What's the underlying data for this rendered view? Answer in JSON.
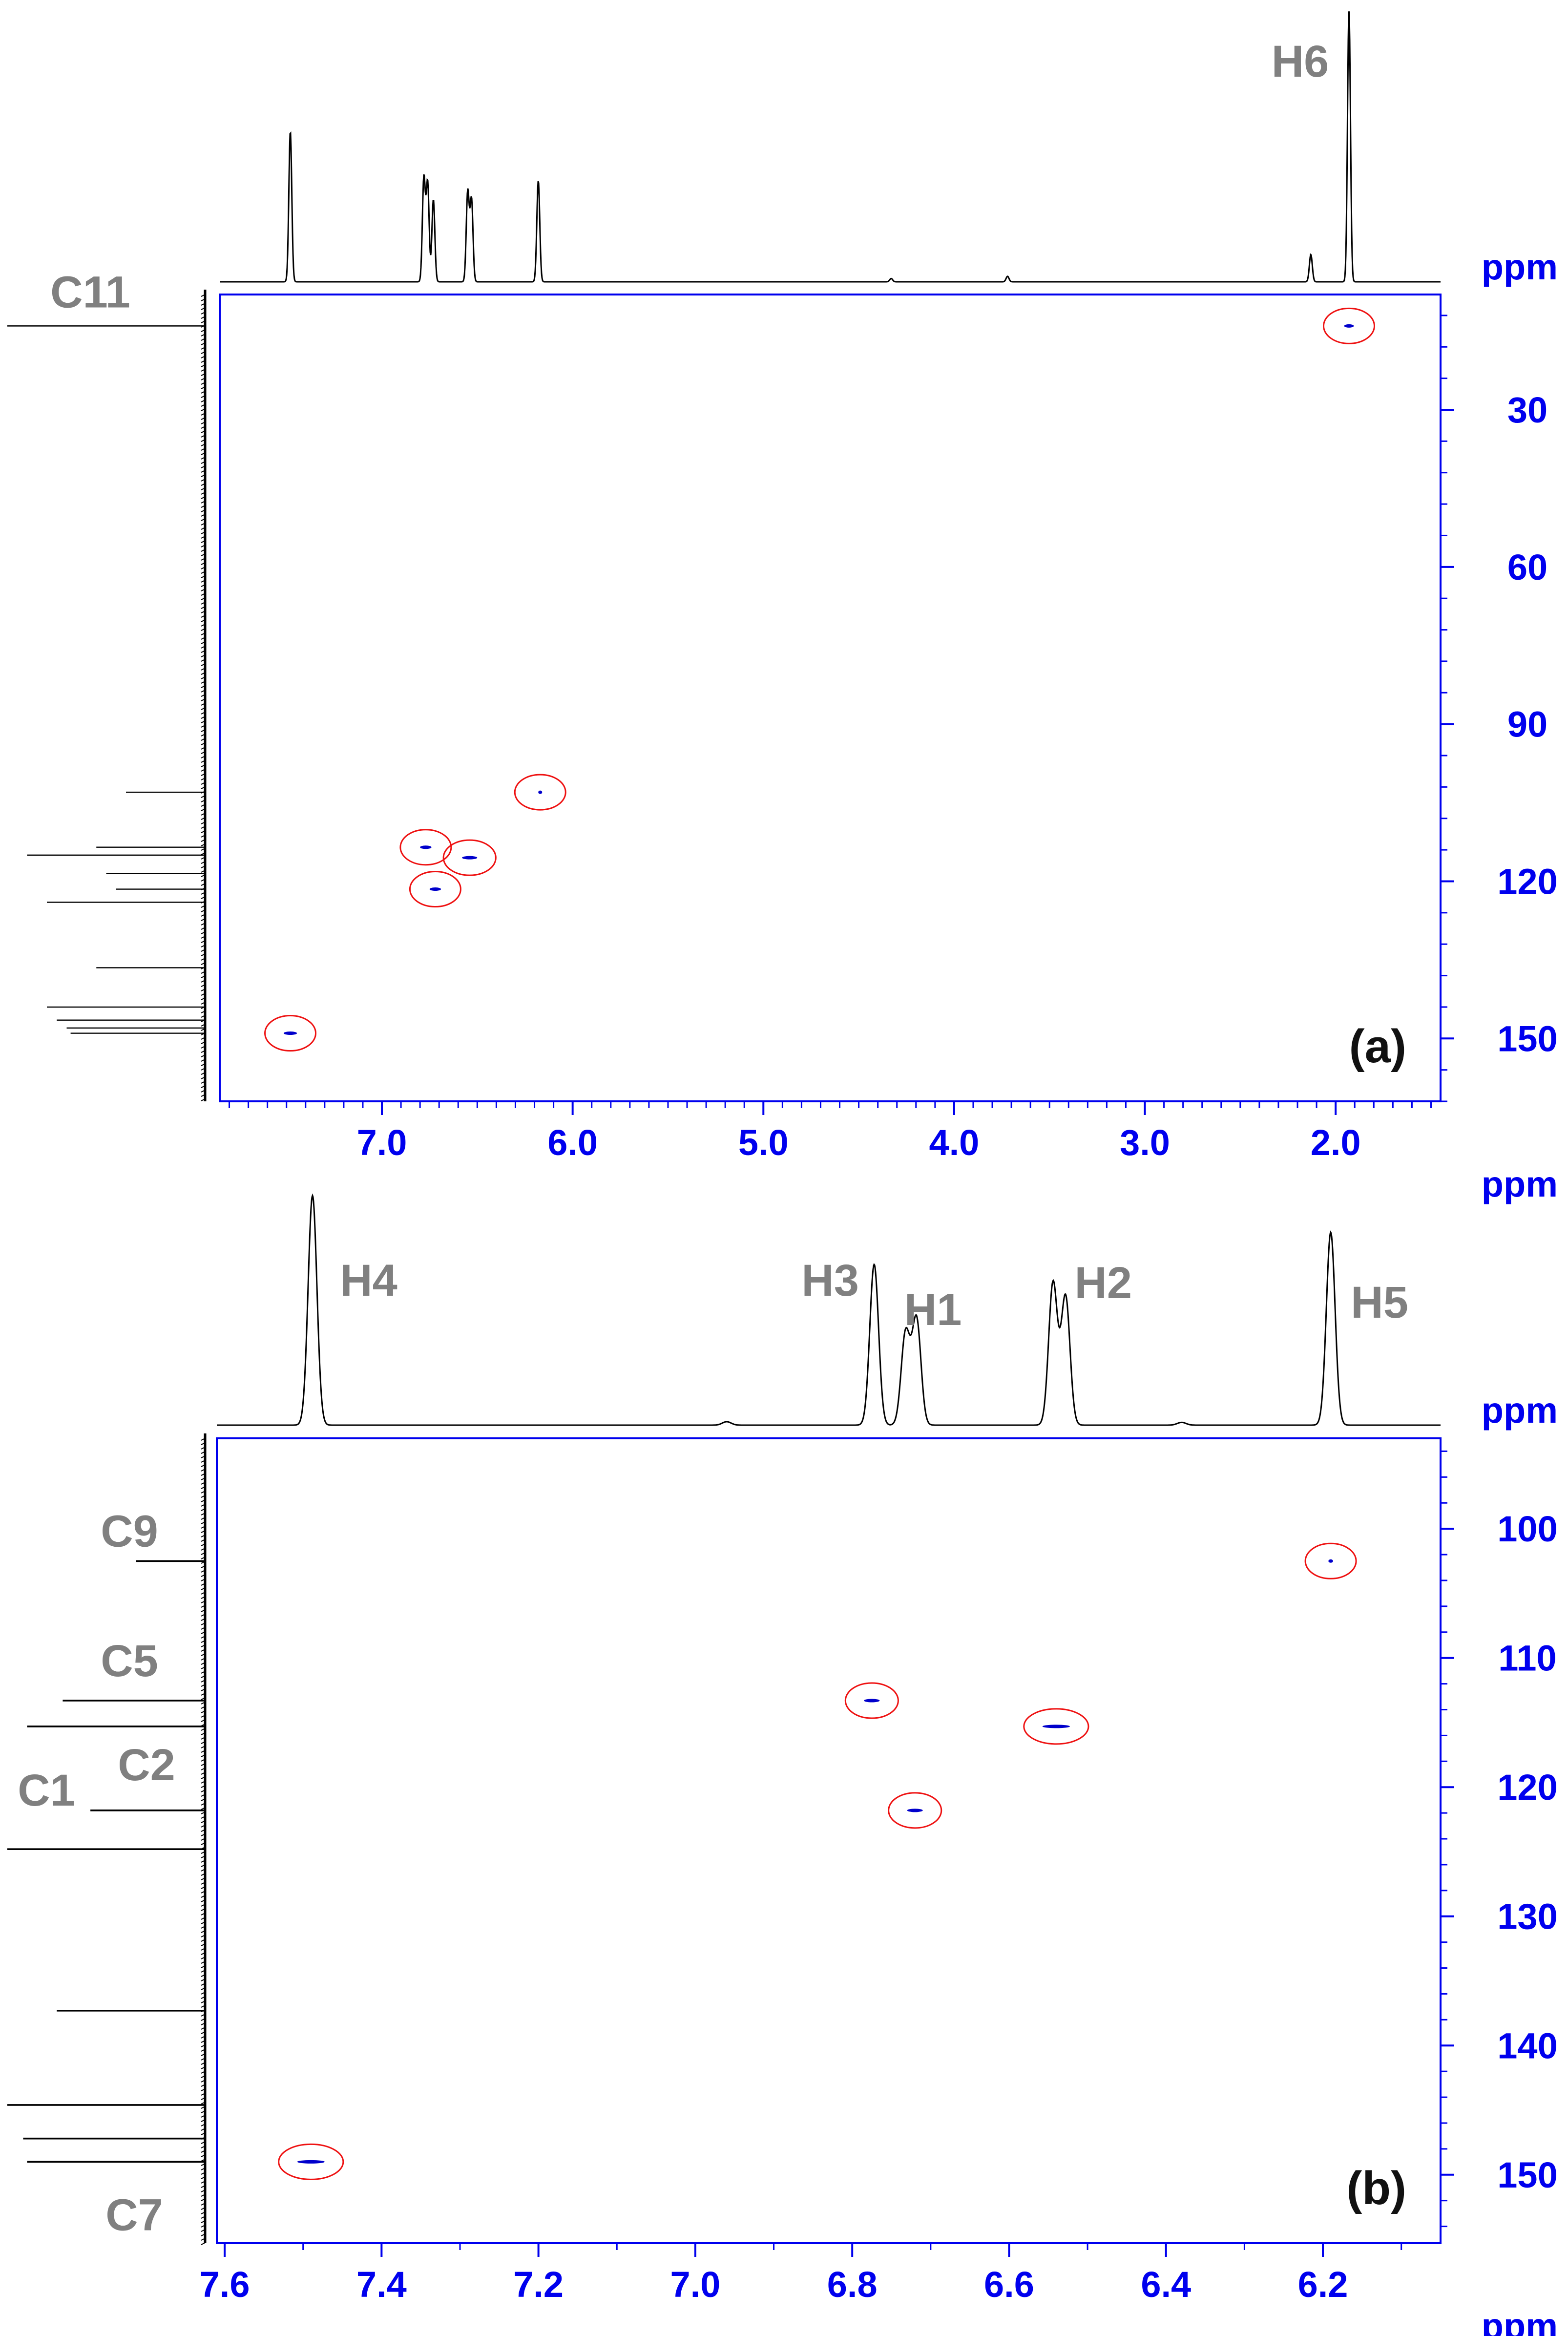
{
  "chart_data": [
    {
      "panel_label": "(a)",
      "type": "scatter",
      "x_unit": "ppm",
      "y_unit": "",
      "xlim": [
        7.85,
        1.45
      ],
      "ylim": [
        8,
        162
      ],
      "x_ticks": [
        7.0,
        6.0,
        5.0,
        4.0,
        3.0,
        2.0
      ],
      "x_tick_labels": [
        "7.0",
        "6.0",
        "5.0",
        "4.0",
        "3.0",
        "2.0"
      ],
      "y_ticks": [
        30,
        60,
        90,
        120,
        150
      ],
      "y_tick_labels": [
        "30",
        "60",
        "90",
        "120",
        "150"
      ],
      "cross_peaks": [
        {
          "x": 1.93,
          "y": 14.0,
          "w": 0.05
        },
        {
          "x": 6.17,
          "y": 103.0,
          "w": 0.02
        },
        {
          "x": 6.77,
          "y": 113.5,
          "w": 0.06
        },
        {
          "x": 6.54,
          "y": 115.5,
          "w": 0.08
        },
        {
          "x": 6.72,
          "y": 121.5,
          "w": 0.06
        },
        {
          "x": 7.48,
          "y": 149.0,
          "w": 0.07
        }
      ],
      "top_spectrum": {
        "unit": "ppm",
        "peaks": [
          {
            "x": 7.48,
            "h": 0.55
          },
          {
            "x": 6.78,
            "h": 0.38
          },
          {
            "x": 6.76,
            "h": 0.36
          },
          {
            "x": 6.73,
            "h": 0.3
          },
          {
            "x": 6.55,
            "h": 0.33
          },
          {
            "x": 6.53,
            "h": 0.3
          },
          {
            "x": 6.18,
            "h": 0.37
          },
          {
            "x": 2.13,
            "h": 0.1
          },
          {
            "x": 1.93,
            "h": 1.0
          },
          {
            "x": 4.33,
            "h": 0.012
          },
          {
            "x": 3.72,
            "h": 0.02
          }
        ],
        "labels": [
          {
            "text": "H6",
            "x": 1.93
          }
        ]
      },
      "side_spectrum": {
        "peaks": [
          {
            "y": 14.0,
            "h": 1.0
          },
          {
            "y": 103.0,
            "h": 0.4
          },
          {
            "y": 113.5,
            "h": 0.55
          },
          {
            "y": 115.0,
            "h": 0.9
          },
          {
            "y": 118.5,
            "h": 0.5
          },
          {
            "y": 121.5,
            "h": 0.45
          },
          {
            "y": 124.0,
            "h": 0.8
          },
          {
            "y": 136.5,
            "h": 0.55
          },
          {
            "y": 144.0,
            "h": 0.8
          },
          {
            "y": 146.5,
            "h": 0.75
          },
          {
            "y": 148.0,
            "h": 0.7
          },
          {
            "y": 149.0,
            "h": 0.68
          }
        ],
        "labels": [
          {
            "text": "C11",
            "y": 14.0
          }
        ]
      }
    },
    {
      "panel_label": "(b)",
      "type": "scatter",
      "x_unit": "ppm",
      "y_unit": "",
      "xlim": [
        7.61,
        6.05
      ],
      "ylim": [
        93,
        155.3
      ],
      "x_ticks": [
        7.6,
        7.4,
        7.2,
        7.0,
        6.8,
        6.6,
        6.4,
        6.2
      ],
      "x_tick_labels": [
        "7.6",
        "7.4",
        "7.2",
        "7.0",
        "6.8",
        "6.6",
        "6.4",
        "6.2"
      ],
      "y_ticks": [
        100,
        110,
        120,
        130,
        140,
        150
      ],
      "y_tick_labels": [
        "100",
        "110",
        "120",
        "130",
        "140",
        "150"
      ],
      "cross_peaks": [
        {
          "x": 6.19,
          "y": 102.5,
          "w": 0.006
        },
        {
          "x": 6.775,
          "y": 113.3,
          "w": 0.02
        },
        {
          "x": 6.54,
          "y": 115.3,
          "w": 0.035
        },
        {
          "x": 6.72,
          "y": 121.8,
          "w": 0.02
        },
        {
          "x": 7.49,
          "y": 149.0,
          "w": 0.035
        }
      ],
      "top_spectrum": {
        "unit": "ppm",
        "peaks": [
          {
            "x": 7.488,
            "h": 1.0
          },
          {
            "x": 6.772,
            "h": 0.7
          },
          {
            "x": 6.732,
            "h": 0.4
          },
          {
            "x": 6.718,
            "h": 0.46
          },
          {
            "x": 6.544,
            "h": 0.62
          },
          {
            "x": 6.528,
            "h": 0.56
          },
          {
            "x": 6.19,
            "h": 0.84
          },
          {
            "x": 6.96,
            "h": 0.015
          },
          {
            "x": 6.38,
            "h": 0.012
          }
        ],
        "labels": [
          {
            "text": "H4",
            "x": 7.488
          },
          {
            "text": "H3",
            "x": 6.772
          },
          {
            "text": "H1",
            "x": 6.725
          },
          {
            "text": "H2",
            "x": 6.536
          },
          {
            "text": "H5",
            "x": 6.19
          }
        ]
      },
      "side_spectrum": {
        "peaks": [
          {
            "y": 102.5,
            "h": 0.35
          },
          {
            "y": 113.3,
            "h": 0.72
          },
          {
            "y": 115.3,
            "h": 0.9
          },
          {
            "y": 121.8,
            "h": 0.58
          },
          {
            "y": 124.8,
            "h": 1.0
          },
          {
            "y": 137.3,
            "h": 0.75
          },
          {
            "y": 144.6,
            "h": 1.0
          },
          {
            "y": 147.2,
            "h": 0.92
          },
          {
            "y": 149.0,
            "h": 0.9
          }
        ],
        "labels": [
          {
            "text": "C9",
            "y": 102.5
          },
          {
            "text": "C5",
            "y": 113.3
          },
          {
            "text": "C2",
            "y": 115.3
          },
          {
            "text": "C1",
            "y": 121.8
          },
          {
            "text": "C7",
            "y": 149.0
          }
        ]
      }
    }
  ],
  "colors": {
    "axis": "#0000ee",
    "spectrum": "#000000",
    "cross_peak": "#0000cc",
    "circle": "#ee1111",
    "label_gray": "#808080"
  }
}
